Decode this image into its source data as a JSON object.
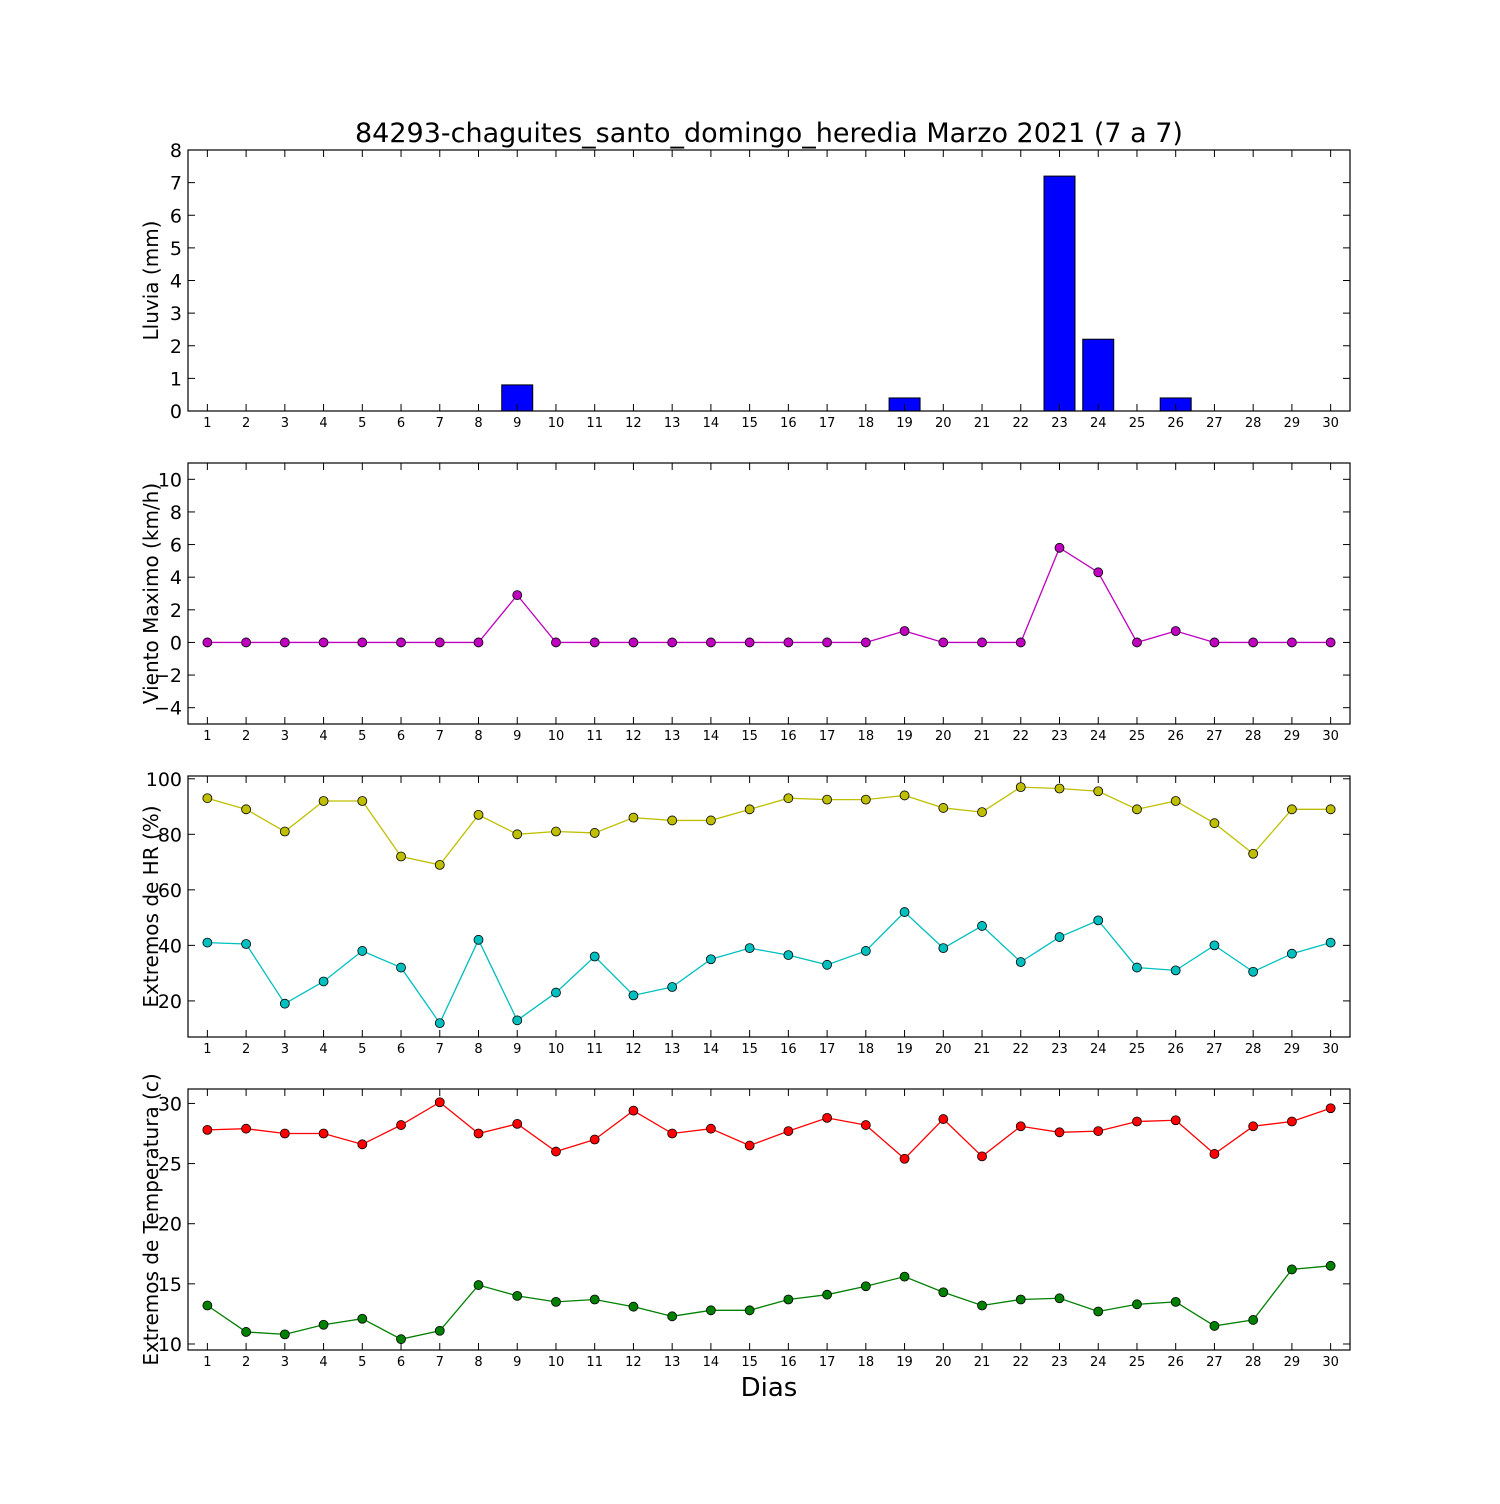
{
  "chart_data": [
    {
      "type": "bar",
      "title": "84293-chaguites_santo_domingo_heredia Marzo 2021  (7 a 7)",
      "ylabel": "Lluvia (mm)",
      "xlabel": "",
      "ylim": [
        0,
        8
      ],
      "yticks": [
        0,
        1,
        2,
        3,
        4,
        5,
        6,
        7,
        8
      ],
      "x": [
        1,
        2,
        3,
        4,
        5,
        6,
        7,
        8,
        9,
        10,
        11,
        12,
        13,
        14,
        15,
        16,
        17,
        18,
        19,
        20,
        21,
        22,
        23,
        24,
        25,
        26,
        27,
        28,
        29,
        30
      ],
      "series": [
        {
          "color": "#0000ff",
          "values": [
            0,
            0,
            0,
            0,
            0,
            0,
            0,
            0,
            0.8,
            0,
            0,
            0,
            0,
            0,
            0,
            0,
            0,
            0,
            0.4,
            0,
            0,
            0,
            7.2,
            2.2,
            0,
            0.4,
            0,
            0,
            0,
            0
          ]
        }
      ]
    },
    {
      "type": "line",
      "title": "",
      "ylabel": "Viento Maximo (km/h)",
      "xlabel": "",
      "ylim": [
        -5,
        11
      ],
      "yticks": [
        -4,
        -2,
        0,
        2,
        4,
        6,
        8,
        10
      ],
      "ytick_labels": [
        "−4",
        "−2",
        "0",
        "2",
        "4",
        "6",
        "8",
        "10"
      ],
      "x": [
        1,
        2,
        3,
        4,
        5,
        6,
        7,
        8,
        9,
        10,
        11,
        12,
        13,
        14,
        15,
        16,
        17,
        18,
        19,
        20,
        21,
        22,
        23,
        24,
        25,
        26,
        27,
        28,
        29,
        30
      ],
      "series": [
        {
          "color": "#bf00bf",
          "values": [
            0,
            0,
            0,
            0,
            0,
            0,
            0,
            0,
            2.9,
            0,
            0,
            0,
            0,
            0,
            0,
            0,
            0,
            0,
            0.7,
            0,
            0,
            0,
            5.8,
            4.3,
            0,
            0.7,
            0,
            0,
            0,
            0
          ]
        }
      ]
    },
    {
      "type": "line",
      "title": "",
      "ylabel": "Extremos de HR (%)",
      "xlabel": "",
      "ylim": [
        7,
        101
      ],
      "yticks": [
        20,
        40,
        60,
        80,
        100
      ],
      "x": [
        1,
        2,
        3,
        4,
        5,
        6,
        7,
        8,
        9,
        10,
        11,
        12,
        13,
        14,
        15,
        16,
        17,
        18,
        19,
        20,
        21,
        22,
        23,
        24,
        25,
        26,
        27,
        28,
        29,
        30
      ],
      "series": [
        {
          "color": "#bfbf00",
          "values": [
            93,
            89,
            81,
            92,
            92,
            72,
            69,
            87,
            80,
            81,
            80.5,
            86,
            85,
            85,
            89,
            93,
            92.5,
            92.5,
            94,
            89.5,
            88,
            97,
            96.5,
            95.5,
            89,
            92,
            84,
            73,
            89,
            89
          ]
        },
        {
          "color": "#00bfbf",
          "values": [
            41,
            40.5,
            19,
            27,
            38,
            32,
            12,
            42,
            13,
            23,
            36,
            22,
            25,
            35,
            39,
            36.5,
            33,
            38,
            52,
            39,
            47,
            34,
            43,
            49,
            32,
            31,
            40,
            30.5,
            37,
            41
          ]
        }
      ]
    },
    {
      "type": "line",
      "title": "",
      "ylabel": "Extremos de Temperatura (c)",
      "xlabel": "Dias",
      "ylim": [
        9.5,
        31.2
      ],
      "yticks": [
        10,
        15,
        20,
        25,
        30
      ],
      "x": [
        1,
        2,
        3,
        4,
        5,
        6,
        7,
        8,
        9,
        10,
        11,
        12,
        13,
        14,
        15,
        16,
        17,
        18,
        19,
        20,
        21,
        22,
        23,
        24,
        25,
        26,
        27,
        28,
        29,
        30
      ],
      "series": [
        {
          "color": "#ff0000",
          "values": [
            27.8,
            27.9,
            27.5,
            27.5,
            26.6,
            28.2,
            30.1,
            27.5,
            28.3,
            26.0,
            27.0,
            29.4,
            27.5,
            27.9,
            26.5,
            27.7,
            28.8,
            28.2,
            25.4,
            28.7,
            25.6,
            28.1,
            27.6,
            27.7,
            28.5,
            28.6,
            25.8,
            28.1,
            28.5,
            29.6
          ]
        },
        {
          "color": "#008000",
          "values": [
            13.2,
            11.0,
            10.8,
            11.6,
            12.1,
            10.4,
            11.1,
            14.9,
            14.0,
            13.5,
            13.7,
            13.1,
            12.3,
            12.8,
            12.8,
            13.7,
            14.1,
            14.8,
            15.6,
            14.3,
            13.2,
            13.7,
            13.8,
            12.7,
            13.3,
            13.5,
            11.5,
            12.0,
            16.2,
            16.5
          ]
        }
      ]
    }
  ]
}
